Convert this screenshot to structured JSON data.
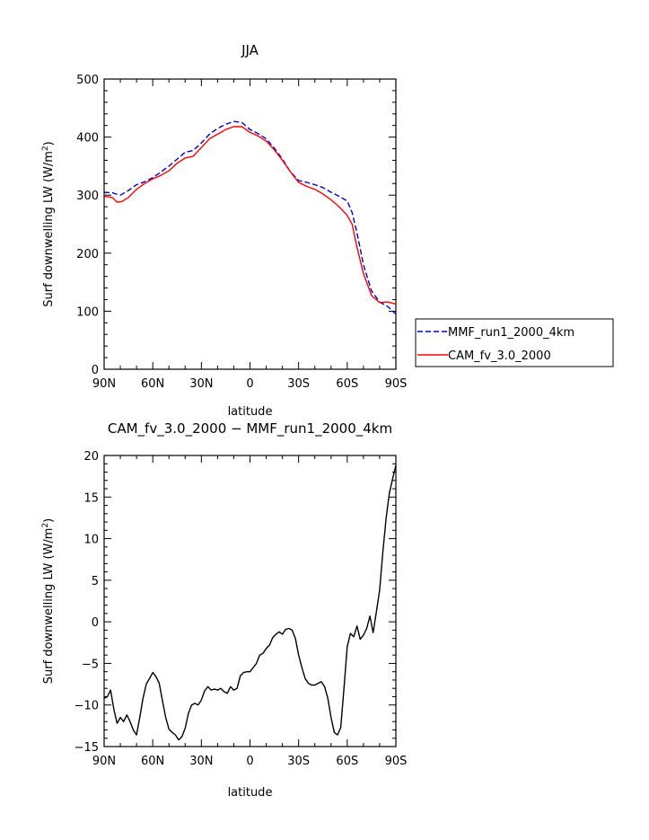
{
  "chart_data": [
    {
      "type": "line",
      "title": "JJA",
      "xlabel": "latitude",
      "ylabel": "Surf downwelling LW (W/m",
      "ylabel_sup": "2",
      "ylabel_close": ")",
      "xlim": [
        90,
        -90
      ],
      "ylim": [
        0,
        500
      ],
      "xticks": [
        90,
        60,
        30,
        0,
        -30,
        -60,
        -90
      ],
      "xticklabels": [
        "90N",
        "60N",
        "30N",
        "0",
        "30S",
        "60S",
        "90S"
      ],
      "yticks": [
        0,
        100,
        200,
        300,
        400,
        500
      ],
      "yticklabels": [
        "0",
        "100",
        "200",
        "300",
        "400",
        "500"
      ],
      "legend_position": "right",
      "series": [
        {
          "name": "MMF_run1_2000_4km",
          "color": "#0000cc",
          "style": "dashed",
          "x": [
            90,
            85,
            80,
            75,
            70,
            65,
            60,
            55,
            50,
            45,
            40,
            35,
            30,
            25,
            20,
            15,
            10,
            5,
            0,
            -5,
            -10,
            -15,
            -20,
            -25,
            -30,
            -35,
            -40,
            -45,
            -50,
            -55,
            -60,
            -63,
            -66,
            -70,
            -75,
            -80,
            -85,
            -90
          ],
          "values": [
            305,
            304,
            300,
            308,
            318,
            323,
            330,
            340,
            350,
            362,
            374,
            377,
            390,
            405,
            415,
            422,
            427,
            425,
            413,
            406,
            397,
            381,
            362,
            340,
            325,
            322,
            318,
            313,
            305,
            298,
            290,
            270,
            235,
            180,
            135,
            116,
            108,
            95
          ]
        },
        {
          "name": "CAM_fv_3.0_2000",
          "color": "#ff0000",
          "style": "solid",
          "x": [
            90,
            85,
            82,
            79,
            75,
            70,
            65,
            60,
            55,
            50,
            45,
            40,
            35,
            30,
            25,
            20,
            15,
            10,
            5,
            0,
            -5,
            -10,
            -15,
            -20,
            -25,
            -30,
            -35,
            -40,
            -45,
            -50,
            -55,
            -60,
            -63,
            -66,
            -70,
            -75,
            -80,
            -85,
            -90
          ],
          "values": [
            298,
            296,
            288,
            289,
            296,
            310,
            320,
            328,
            334,
            342,
            355,
            364,
            367,
            382,
            397,
            405,
            413,
            418,
            418,
            408,
            402,
            393,
            378,
            360,
            340,
            322,
            315,
            310,
            302,
            292,
            280,
            265,
            250,
            210,
            165,
            127,
            115,
            116,
            112
          ]
        }
      ]
    },
    {
      "type": "line",
      "title": "CAM_fv_3.0_2000 − MMF_run1_2000_4km",
      "xlabel": "latitude",
      "ylabel": "Surf downwelling LW (W/m",
      "ylabel_sup": "2",
      "ylabel_close": ")",
      "xlim": [
        90,
        -90
      ],
      "ylim": [
        -15,
        20
      ],
      "xticks": [
        90,
        60,
        30,
        0,
        -30,
        -60,
        -90
      ],
      "xticklabels": [
        "90N",
        "60N",
        "30N",
        "0",
        "30S",
        "60S",
        "90S"
      ],
      "yticks": [
        -15,
        -10,
        -5,
        0,
        5,
        10,
        15,
        20
      ],
      "yticklabels": [
        "−15",
        "−10",
        "−5",
        "0",
        "5",
        "10",
        "15",
        "20"
      ],
      "series": [
        {
          "color": "#000000",
          "style": "solid",
          "x": [
            90,
            88,
            86,
            84,
            82,
            80,
            78,
            76,
            74,
            72,
            70,
            68,
            66,
            64,
            62,
            60,
            58,
            56,
            54,
            52,
            50,
            48,
            46,
            44,
            42,
            40,
            38,
            36,
            34,
            32,
            30,
            28,
            26,
            24,
            22,
            20,
            18,
            16,
            14,
            12,
            10,
            8,
            6,
            4,
            2,
            0,
            -2,
            -4,
            -6,
            -8,
            -10,
            -12,
            -14,
            -16,
            -18,
            -20,
            -22,
            -24,
            -26,
            -28,
            -30,
            -32,
            -34,
            -36,
            -38,
            -40,
            -42,
            -44,
            -46,
            -48,
            -50,
            -52,
            -54,
            -56,
            -58,
            -60,
            -62,
            -64,
            -66,
            -68,
            -70,
            -72,
            -74,
            -76,
            -78,
            -80,
            -82,
            -84,
            -86,
            -88,
            -90
          ],
          "values": [
            -9.2,
            -9.0,
            -8.2,
            -10.5,
            -12.2,
            -11.5,
            -12.0,
            -11.2,
            -12.0,
            -13.0,
            -13.6,
            -11.5,
            -9.2,
            -7.5,
            -6.8,
            -6.1,
            -6.6,
            -7.4,
            -9.5,
            -11.5,
            -12.9,
            -13.3,
            -13.6,
            -14.2,
            -13.8,
            -12.8,
            -11.0,
            -10.0,
            -9.8,
            -10.0,
            -9.4,
            -8.3,
            -7.8,
            -8.2,
            -8.1,
            -8.2,
            -8.0,
            -8.4,
            -8.6,
            -7.8,
            -8.2,
            -8.0,
            -6.5,
            -6.1,
            -6.0,
            -6.0,
            -5.5,
            -5.0,
            -4.0,
            -3.8,
            -3.2,
            -2.8,
            -1.9,
            -1.5,
            -1.2,
            -1.5,
            -0.9,
            -0.8,
            -1.0,
            -2.0,
            -4.0,
            -5.5,
            -6.8,
            -7.4,
            -7.6,
            -7.6,
            -7.4,
            -7.2,
            -7.8,
            -9.2,
            -11.5,
            -13.3,
            -13.6,
            -12.7,
            -8.0,
            -3.0,
            -1.4,
            -1.8,
            -0.5,
            -2.1,
            -1.6,
            -0.8,
            0.7,
            -1.3,
            1.2,
            3.8,
            8.5,
            12.5,
            15.5,
            17.2,
            18.8
          ]
        }
      ]
    }
  ]
}
